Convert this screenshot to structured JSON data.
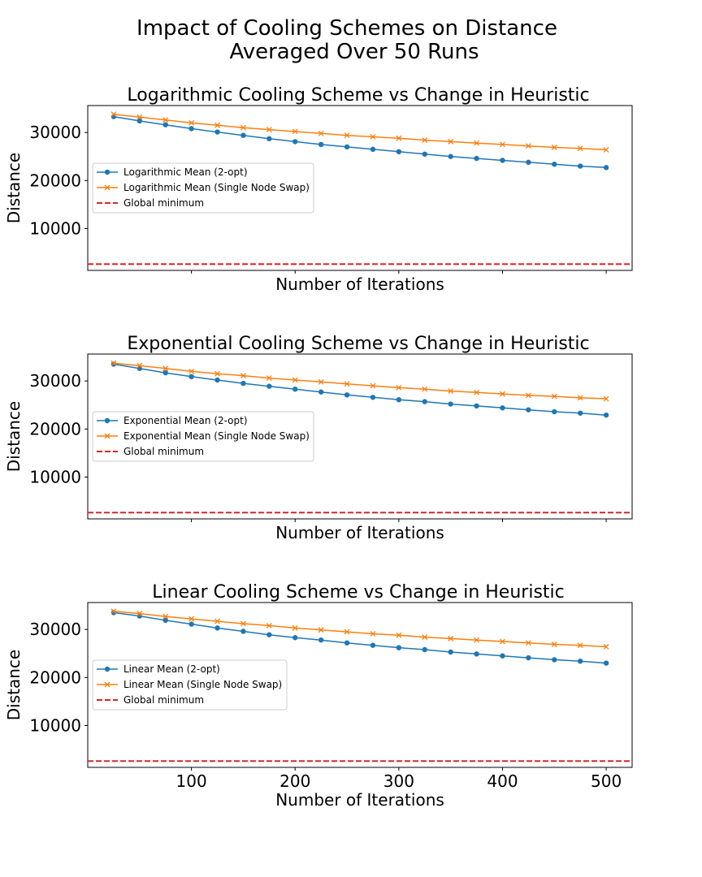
{
  "suptitle_line1": "Impact of Cooling Schemes on Distance",
  "suptitle_line2": "Averaged Over 50 Runs",
  "colors": {
    "series_2opt": "#1f77b4",
    "series_swap": "#ff7f0e",
    "global_min": "#d62728",
    "axes": "#000000"
  },
  "chart_data": [
    {
      "type": "line",
      "title": "Logarithmic Cooling Scheme vs Change in Heuristic",
      "xlabel": "Number of Iterations",
      "ylabel": "Distance",
      "xlim": [
        0,
        525
      ],
      "ylim": [
        1300,
        35600
      ],
      "xticks": [
        100,
        200,
        300,
        400,
        500
      ],
      "xtick_labels_visible": false,
      "yticks": [
        10000,
        20000,
        30000
      ],
      "grid": false,
      "legend_position": "center-left",
      "x": [
        25,
        50,
        75,
        100,
        125,
        150,
        175,
        200,
        225,
        250,
        275,
        300,
        325,
        350,
        375,
        400,
        425,
        450,
        475,
        500
      ],
      "series": [
        {
          "name": "Logarithmic Mean (2-opt)",
          "marker": "circle",
          "values": [
            33300,
            32400,
            31600,
            30800,
            30100,
            29400,
            28700,
            28100,
            27500,
            27000,
            26500,
            26000,
            25500,
            25000,
            24600,
            24200,
            23800,
            23400,
            23000,
            22700
          ]
        },
        {
          "name": "Logarithmic Mean (Single Node Swap)",
          "marker": "x",
          "values": [
            33800,
            33200,
            32600,
            32000,
            31500,
            31000,
            30600,
            30200,
            29800,
            29400,
            29100,
            28800,
            28400,
            28100,
            27800,
            27500,
            27200,
            26900,
            26700,
            26400
          ]
        }
      ],
      "hline": {
        "name": "Global minimum",
        "value": 2600,
        "style": "dashed"
      }
    },
    {
      "type": "line",
      "title": "Exponential Cooling Scheme vs Change in Heuristic",
      "xlabel": "Number of Iterations",
      "ylabel": "Distance",
      "xlim": [
        0,
        525
      ],
      "ylim": [
        1300,
        35600
      ],
      "xticks": [
        100,
        200,
        300,
        400,
        500
      ],
      "xtick_labels_visible": false,
      "yticks": [
        10000,
        20000,
        30000
      ],
      "grid": false,
      "legend_position": "center-left",
      "x": [
        25,
        50,
        75,
        100,
        125,
        150,
        175,
        200,
        225,
        250,
        275,
        300,
        325,
        350,
        375,
        400,
        425,
        450,
        475,
        500
      ],
      "series": [
        {
          "name": "Exponential Mean (2-opt)",
          "marker": "circle",
          "values": [
            33500,
            32600,
            31700,
            30900,
            30200,
            29500,
            28900,
            28300,
            27700,
            27100,
            26600,
            26100,
            25700,
            25200,
            24800,
            24400,
            24000,
            23600,
            23300,
            22900
          ]
        },
        {
          "name": "Exponential Mean (Single Node Swap)",
          "marker": "x",
          "values": [
            33700,
            33200,
            32600,
            32000,
            31500,
            31100,
            30600,
            30200,
            29800,
            29400,
            29000,
            28600,
            28300,
            27900,
            27600,
            27300,
            27000,
            26800,
            26500,
            26300
          ]
        }
      ],
      "hline": {
        "name": "Global minimum",
        "value": 2600,
        "style": "dashed"
      }
    },
    {
      "type": "line",
      "title": "Linear Cooling Scheme vs Change in Heuristic",
      "xlabel": "Number of Iterations",
      "ylabel": "Distance",
      "xlim": [
        0,
        525
      ],
      "ylim": [
        1300,
        35600
      ],
      "xticks": [
        100,
        200,
        300,
        400,
        500
      ],
      "xtick_labels_visible": true,
      "yticks": [
        10000,
        20000,
        30000
      ],
      "grid": false,
      "legend_position": "center-left",
      "x": [
        25,
        50,
        75,
        100,
        125,
        150,
        175,
        200,
        225,
        250,
        275,
        300,
        325,
        350,
        375,
        400,
        425,
        450,
        475,
        500
      ],
      "series": [
        {
          "name": "Linear Mean (2-opt)",
          "marker": "circle",
          "values": [
            33500,
            32800,
            31900,
            31100,
            30300,
            29600,
            28900,
            28300,
            27800,
            27200,
            26700,
            26200,
            25800,
            25300,
            24900,
            24500,
            24100,
            23700,
            23400,
            23000
          ]
        },
        {
          "name": "Linear Mean (Single Node Swap)",
          "marker": "x",
          "values": [
            33800,
            33300,
            32700,
            32200,
            31700,
            31200,
            30800,
            30300,
            29900,
            29500,
            29100,
            28800,
            28400,
            28100,
            27800,
            27500,
            27200,
            26900,
            26700,
            26400
          ]
        }
      ],
      "hline": {
        "name": "Global minimum",
        "value": 2600,
        "style": "dashed"
      }
    }
  ]
}
